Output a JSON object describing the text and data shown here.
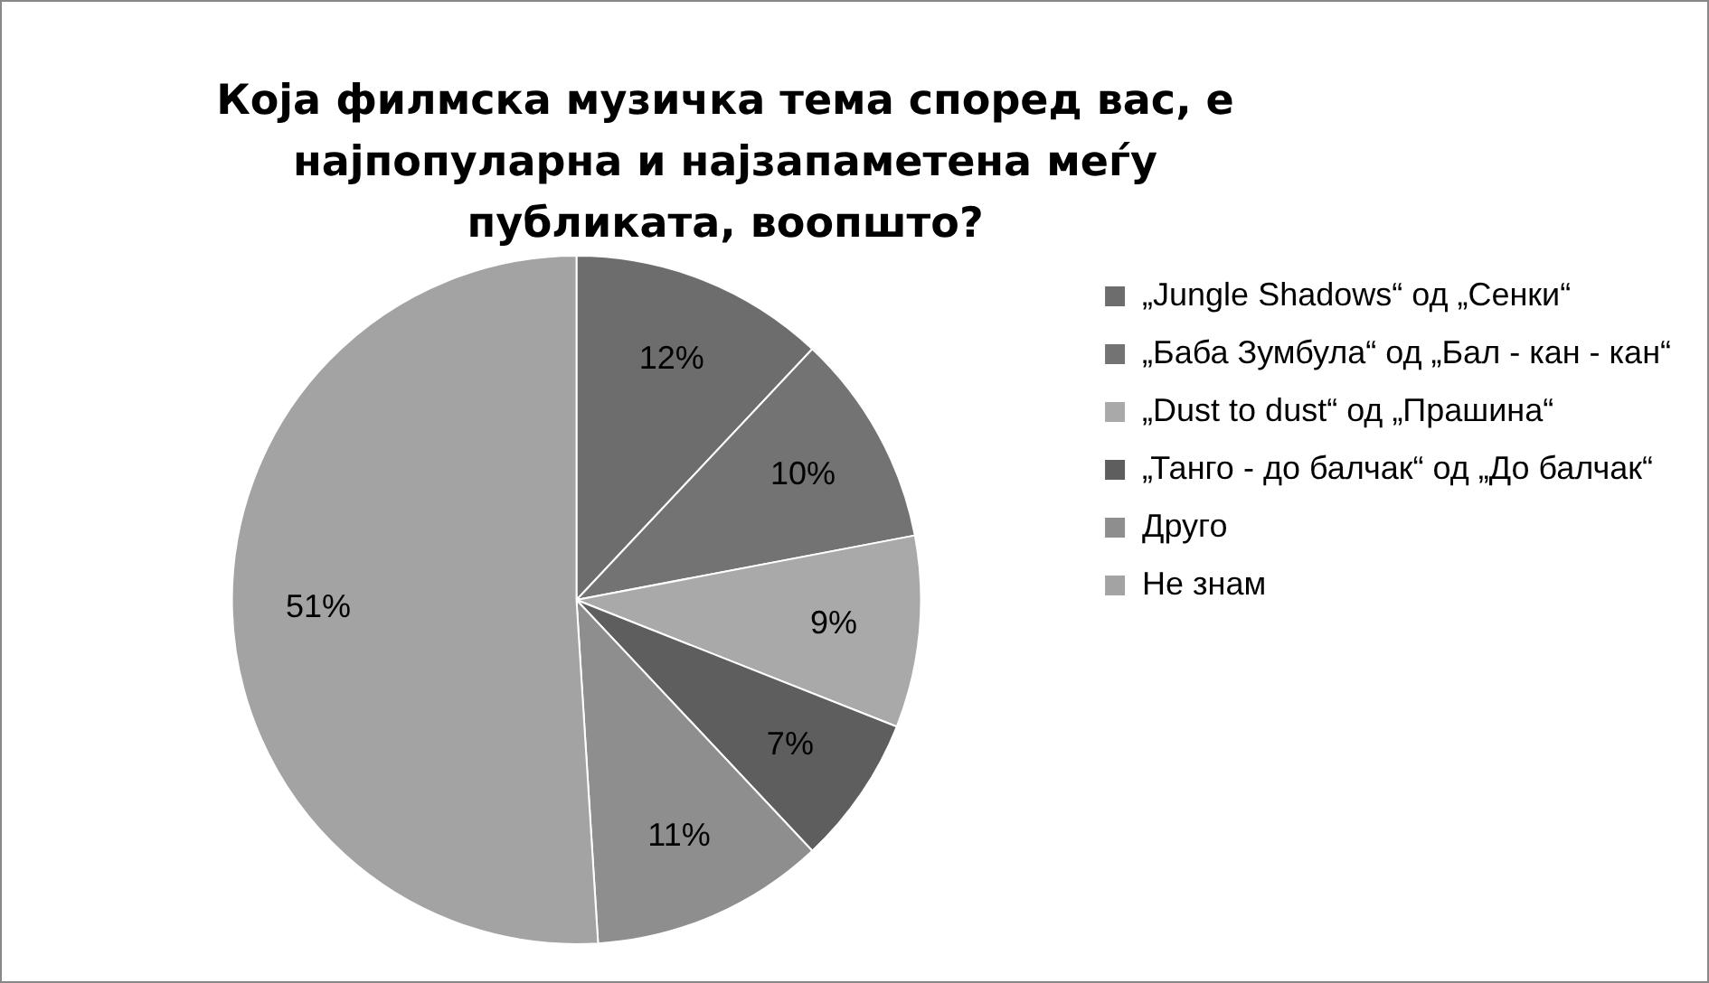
{
  "chart_data": {
    "type": "pie",
    "title": "Која филмска музичка тема според вас, е најпопуларна и најзапаметена меѓу публиката, воопшто?",
    "categories": [
      "„Jungle Shadows“ од „Сенки“",
      "„Баба Зумбула“ од „Бал - кан - кан“",
      "„Dust to dust“ од „Прашина“",
      "„Танго - до балчак“ од „До балчак“",
      "Друго",
      "Не знам"
    ],
    "values": [
      12,
      10,
      9,
      7,
      11,
      51
    ],
    "colors": [
      "#6d6d6d",
      "#737373",
      "#a9a9a9",
      "#5e5e5e",
      "#8e8e8e",
      "#a3a3a3"
    ],
    "value_labels": [
      "12%",
      "10%",
      "9%",
      "7%",
      "11%",
      "51%"
    ],
    "legend": "right"
  }
}
